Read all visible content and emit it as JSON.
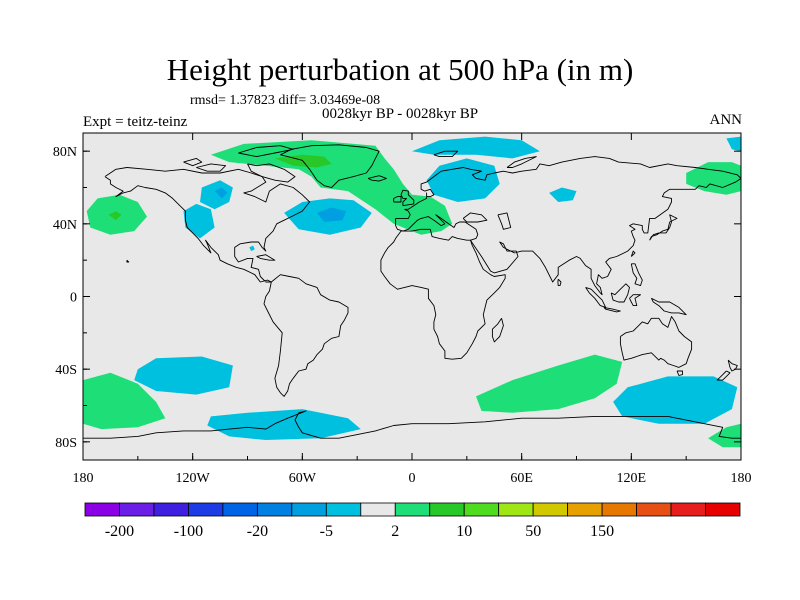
{
  "title": "Height perturbation at 500 hPa (in m)",
  "stats": "rmsd= 1.37823 diff= 3.03469e-08",
  "subtitle": "0028kyr BP - 0028kyr BP",
  "experiment": "Expt = teitz-teinz",
  "season": "ANN",
  "map": {
    "projection": "cylindrical-equidistant",
    "lon_range": [
      -180,
      180
    ],
    "lat_range": [
      -90,
      90
    ],
    "background_color": "#e8e8e8",
    "coastline_color": "#000000",
    "lat_ticks": [
      {
        "lat": 80,
        "label": "80N"
      },
      {
        "lat": 40,
        "label": "40N"
      },
      {
        "lat": 0,
        "label": "0"
      },
      {
        "lat": -40,
        "label": "40S"
      },
      {
        "lat": -80,
        "label": "80S"
      }
    ],
    "lon_ticks": [
      {
        "lon": -180,
        "label": "180"
      },
      {
        "lon": -120,
        "label": "120W"
      },
      {
        "lon": -60,
        "label": "60W"
      },
      {
        "lon": 0,
        "label": "0"
      },
      {
        "lon": 60,
        "label": "60E"
      },
      {
        "lon": 120,
        "label": "120E"
      },
      {
        "lon": 180,
        "label": "180"
      }
    ],
    "anomaly_regions": [
      {
        "name": "arctic-greenland-positive",
        "level": "2 to 10",
        "color": "#1ede78",
        "polygon": [
          [
            -110,
            78
          ],
          [
            -92,
            84
          ],
          [
            -55,
            86
          ],
          [
            -20,
            83
          ],
          [
            -15,
            76
          ],
          [
            -10,
            70
          ],
          [
            -5,
            62
          ],
          [
            0,
            56
          ],
          [
            10,
            55
          ],
          [
            18,
            50
          ],
          [
            22,
            40
          ],
          [
            16,
            36
          ],
          [
            5,
            34
          ],
          [
            -10,
            40
          ],
          [
            -20,
            48
          ],
          [
            -35,
            58
          ],
          [
            -50,
            60
          ],
          [
            -55,
            66
          ],
          [
            -62,
            70
          ],
          [
            -80,
            72
          ],
          [
            -100,
            74
          ]
        ]
      },
      {
        "name": "greenland-core-positive",
        "level": "10 to 20",
        "color": "#28c828",
        "polygon": [
          [
            -75,
            76
          ],
          [
            -60,
            78
          ],
          [
            -48,
            77
          ],
          [
            -44,
            73
          ],
          [
            -52,
            71
          ],
          [
            -65,
            72
          ]
        ]
      },
      {
        "name": "north-pacific-positive",
        "level": "2 to 10",
        "color": "#1ede78",
        "polygon": [
          [
            -178,
            47
          ],
          [
            -172,
            54
          ],
          [
            -160,
            56
          ],
          [
            -150,
            52
          ],
          [
            -145,
            44
          ],
          [
            -152,
            36
          ],
          [
            -165,
            34
          ],
          [
            -176,
            38
          ]
        ]
      },
      {
        "name": "north-pacific-core",
        "level": "10 to 20",
        "color": "#28c828",
        "polygon": [
          [
            -166,
            45
          ],
          [
            -162,
            47
          ],
          [
            -159,
            45
          ],
          [
            -162,
            42
          ]
        ]
      },
      {
        "name": "east-asia-positive",
        "level": "2 to 10",
        "color": "#1ede78",
        "polygon": [
          [
            150,
            68
          ],
          [
            162,
            74
          ],
          [
            175,
            74
          ],
          [
            180,
            72
          ],
          [
            180,
            58
          ],
          [
            172,
            56
          ],
          [
            160,
            58
          ],
          [
            150,
            62
          ]
        ]
      },
      {
        "name": "arctic-top-right-negative",
        "level": "-5 to -2",
        "color": "#00c0e0",
        "polygon": [
          [
            172,
            87
          ],
          [
            180,
            88
          ],
          [
            180,
            80
          ],
          [
            175,
            81
          ]
        ]
      },
      {
        "name": "canada-negative",
        "level": "-5 to -2",
        "color": "#00c0e0",
        "polygon": [
          [
            -115,
            60
          ],
          [
            -105,
            64
          ],
          [
            -98,
            60
          ],
          [
            -100,
            52
          ],
          [
            -108,
            48
          ],
          [
            -116,
            52
          ]
        ]
      },
      {
        "name": "canada-core",
        "level": "-20 to -5",
        "color": "#00a0e0",
        "polygon": [
          [
            -108,
            58
          ],
          [
            -104,
            60
          ],
          [
            -101,
            57
          ],
          [
            -104,
            54
          ]
        ]
      },
      {
        "name": "us-west-negative",
        "level": "-5 to -2",
        "color": "#00c0e0",
        "polygon": [
          [
            -125,
            47
          ],
          [
            -118,
            51
          ],
          [
            -110,
            48
          ],
          [
            -108,
            38
          ],
          [
            -116,
            32
          ],
          [
            -124,
            38
          ]
        ]
      },
      {
        "name": "north-atlantic-negative",
        "level": "-5 to -2",
        "color": "#00c0e0",
        "polygon": [
          [
            -70,
            46
          ],
          [
            -60,
            52
          ],
          [
            -45,
            54
          ],
          [
            -32,
            53
          ],
          [
            -22,
            46
          ],
          [
            -28,
            38
          ],
          [
            -45,
            34
          ],
          [
            -62,
            37
          ]
        ]
      },
      {
        "name": "north-atlantic-core",
        "level": "-20 to -5",
        "color": "#00a0e0",
        "polygon": [
          [
            -52,
            46
          ],
          [
            -44,
            49
          ],
          [
            -36,
            47
          ],
          [
            -38,
            42
          ],
          [
            -48,
            41
          ]
        ]
      },
      {
        "name": "scandinavia-negative",
        "level": "-5 to -2",
        "color": "#00c0e0",
        "polygon": [
          [
            8,
            64
          ],
          [
            15,
            72
          ],
          [
            30,
            76
          ],
          [
            45,
            72
          ],
          [
            48,
            62
          ],
          [
            40,
            54
          ],
          [
            25,
            52
          ],
          [
            12,
            56
          ]
        ]
      },
      {
        "name": "arctic-north-negative",
        "level": "-5 to -2",
        "color": "#00c0e0",
        "polygon": [
          [
            0,
            80
          ],
          [
            15,
            86
          ],
          [
            40,
            88
          ],
          [
            60,
            86
          ],
          [
            70,
            80
          ],
          [
            55,
            76
          ],
          [
            35,
            78
          ],
          [
            12,
            78
          ]
        ]
      },
      {
        "name": "central-asia-negative",
        "level": "-5 to -2",
        "color": "#00c0e0",
        "polygon": [
          [
            75,
            57
          ],
          [
            82,
            60
          ],
          [
            90,
            58
          ],
          [
            88,
            53
          ],
          [
            80,
            52
          ]
        ]
      },
      {
        "name": "gulf-of-mexico-speck",
        "level": "-5 to -2",
        "color": "#00c0e0",
        "polygon": [
          [
            -89,
            27
          ],
          [
            -87,
            28
          ],
          [
            -86,
            26
          ],
          [
            -88,
            25
          ]
        ]
      },
      {
        "name": "south-pacific-negative",
        "level": "-5 to -2",
        "color": "#00c0e0",
        "polygon": [
          [
            -150,
            -40
          ],
          [
            -140,
            -34
          ],
          [
            -115,
            -33
          ],
          [
            -98,
            -38
          ],
          [
            -100,
            -50
          ],
          [
            -118,
            -54
          ],
          [
            -140,
            -52
          ],
          [
            -152,
            -46
          ]
        ]
      },
      {
        "name": "south-pacific-positive",
        "level": "2 to 10",
        "color": "#1ede78",
        "polygon": [
          [
            -180,
            -46
          ],
          [
            -165,
            -42
          ],
          [
            -150,
            -48
          ],
          [
            -140,
            -58
          ],
          [
            -135,
            -67
          ],
          [
            -150,
            -72
          ],
          [
            -170,
            -73
          ],
          [
            -180,
            -70
          ]
        ]
      },
      {
        "name": "antarctic-negative",
        "level": "-5 to -2",
        "color": "#00c0e0",
        "polygon": [
          [
            -110,
            -66
          ],
          [
            -90,
            -64
          ],
          [
            -60,
            -62
          ],
          [
            -35,
            -67
          ],
          [
            -28,
            -73
          ],
          [
            -50,
            -78
          ],
          [
            -80,
            -79
          ],
          [
            -100,
            -77
          ],
          [
            -112,
            -71
          ]
        ]
      },
      {
        "name": "southern-ocean-positive",
        "level": "2 to 10",
        "color": "#1ede78",
        "polygon": [
          [
            35,
            -55
          ],
          [
            55,
            -46
          ],
          [
            80,
            -38
          ],
          [
            100,
            -32
          ],
          [
            115,
            -36
          ],
          [
            112,
            -48
          ],
          [
            100,
            -56
          ],
          [
            80,
            -62
          ],
          [
            55,
            -64
          ],
          [
            38,
            -63
          ]
        ]
      },
      {
        "name": "south-pacific-east-negative",
        "level": "-5 to -2",
        "color": "#00c0e0",
        "polygon": [
          [
            110,
            -58
          ],
          [
            118,
            -50
          ],
          [
            140,
            -44
          ],
          [
            165,
            -44
          ],
          [
            178,
            -50
          ],
          [
            175,
            -62
          ],
          [
            160,
            -70
          ],
          [
            135,
            -70
          ],
          [
            115,
            -66
          ]
        ]
      },
      {
        "name": "antarctic-east-positive",
        "level": "2 to 10",
        "color": "#1ede78",
        "polygon": [
          [
            162,
            -78
          ],
          [
            172,
            -72
          ],
          [
            180,
            -70
          ],
          [
            180,
            -83
          ],
          [
            170,
            -83
          ]
        ]
      }
    ]
  },
  "colorbar": {
    "colors": [
      "#8c00e6",
      "#6a1ee6",
      "#4020e0",
      "#1e3ce6",
      "#0064e6",
      "#0080e0",
      "#00a0e0",
      "#00c0e0",
      "#e8e8e8",
      "#1ede78",
      "#28c828",
      "#50dc1e",
      "#a0e614",
      "#d2c800",
      "#e6a000",
      "#e67800",
      "#e65014",
      "#e61e1e",
      "#e60000"
    ],
    "labels": [
      {
        "boundary": 1,
        "text": "-200"
      },
      {
        "boundary": 3,
        "text": "-100"
      },
      {
        "boundary": 5,
        "text": "-20"
      },
      {
        "boundary": 7,
        "text": "-5"
      },
      {
        "boundary": 9,
        "text": "2"
      },
      {
        "boundary": 11,
        "text": "10"
      },
      {
        "boundary": 13,
        "text": "50"
      },
      {
        "boundary": 15,
        "text": "150"
      }
    ]
  }
}
